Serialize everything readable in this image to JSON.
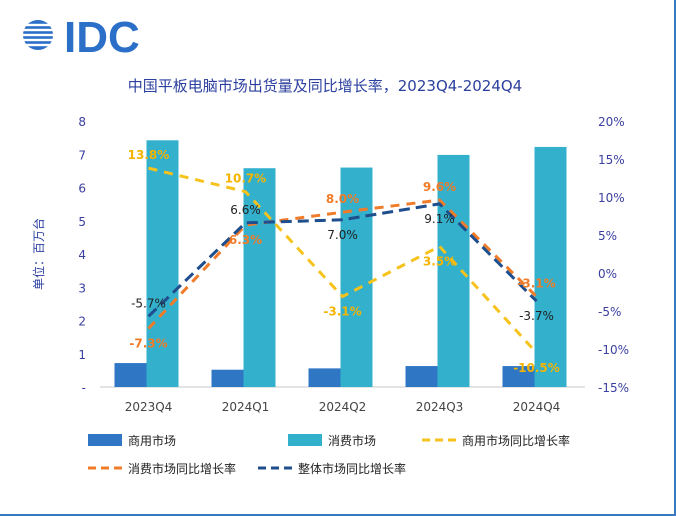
{
  "logo": {
    "text": "IDC",
    "color": "#2b6fc8"
  },
  "chart_data": {
    "type": "bar",
    "title": "中国平板电脑市场出货量及同比增长率，2023Q4-2024Q4",
    "ylabel": "单位：百万台",
    "categories": [
      "2023Q4",
      "2024Q1",
      "2024Q2",
      "2024Q3",
      "2024Q4"
    ],
    "ylim": [
      0,
      8
    ],
    "y_ticks": [
      "-",
      "1",
      "2",
      "3",
      "4",
      "5",
      "6",
      "7",
      "8"
    ],
    "y2lim": [
      -15,
      20
    ],
    "y2_ticks": [
      "-15%",
      "-10%",
      "-5%",
      "0%",
      "5%",
      "10%",
      "15%",
      "20%"
    ],
    "grid": false,
    "legend_position": "bottom",
    "bar_series": [
      {
        "name": "商用市场",
        "color": "#2f77c4",
        "values": [
          0.72,
          0.52,
          0.56,
          0.63,
          0.63
        ]
      },
      {
        "name": "消费市场",
        "color": "#33b0cc",
        "values": [
          7.42,
          6.58,
          6.6,
          6.98,
          7.22
        ]
      }
    ],
    "line_series": [
      {
        "name": "商用市场同比增长率",
        "color": "#f6c21c",
        "values": [
          13.8,
          10.7,
          -3.1,
          3.5,
          -10.5
        ],
        "labels": [
          "13.8%",
          "10.7%",
          "-3.1%",
          "3.5%",
          "-10.5%"
        ],
        "label_color": "#f4b400",
        "label_pos": [
          "above",
          "above",
          "below",
          "below",
          "below"
        ]
      },
      {
        "name": "消费市场同比增长率",
        "color": "#f07c2a",
        "values": [
          -7.3,
          6.3,
          8.0,
          9.6,
          -3.1
        ],
        "labels": [
          "-7.3%",
          "6.3%",
          "8.0%",
          "9.6%",
          "-3.1%"
        ],
        "label_color": "#f07c2a",
        "label_pos": [
          "below",
          "below",
          "above",
          "above",
          "above"
        ]
      },
      {
        "name": "整体市场同比增长率",
        "color": "#1f4e8c",
        "values": [
          -5.7,
          6.6,
          7.0,
          9.1,
          -3.7
        ],
        "labels": [
          "-5.7%",
          "6.6%",
          "7.0%",
          "9.1%",
          "-3.7%"
        ],
        "label_color": "#222222",
        "label_pos": [
          "above",
          "above",
          "below",
          "below",
          "below"
        ]
      }
    ]
  }
}
